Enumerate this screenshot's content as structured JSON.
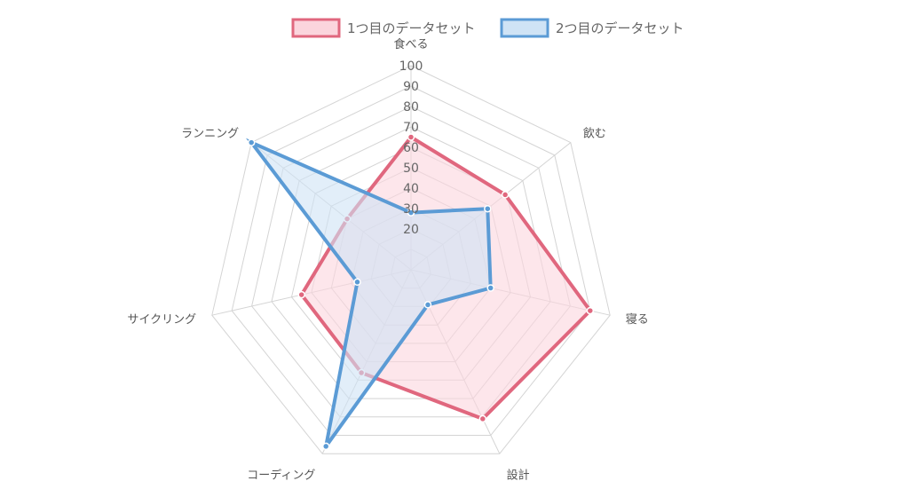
{
  "chart_data": {
    "type": "radar",
    "categories": [
      "食べる",
      "飲む",
      "寝る",
      "設計",
      "コーディング",
      "サイクリング",
      "ランニング"
    ],
    "series": [
      {
        "name": "1つ目のデータセット",
        "values": [
          65,
          59,
          90,
          81,
          56,
          55,
          40
        ],
        "color": "#e0677e",
        "fill": "#fbd5dd"
      },
      {
        "name": "2つ目のデータセット",
        "values": [
          28,
          48,
          40,
          19,
          96,
          27,
          100
        ],
        "color": "#5b9bd5",
        "fill": "#cfe3f5"
      }
    ],
    "ticks": [
      "20",
      "30",
      "40",
      "50",
      "60",
      "70",
      "80",
      "90",
      "100"
    ],
    "rmin": 0,
    "rmax": 100,
    "grid": true,
    "legend_position": "top"
  }
}
